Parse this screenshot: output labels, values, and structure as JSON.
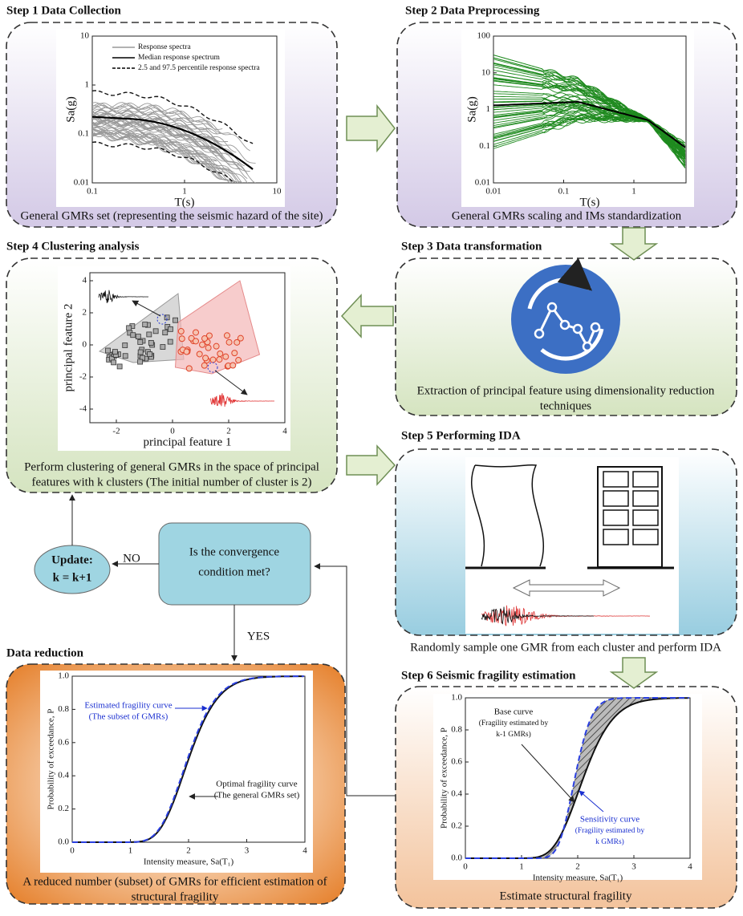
{
  "step1": {
    "title": "Step 1  Data Collection",
    "legend": [
      "Response spectra",
      "Median response spectrum",
      "2.5 and 97.5 percentile response spectra"
    ],
    "y_label": "Sa(g)",
    "x_label": "T(s)",
    "y_ticks": [
      "10",
      "1",
      "0.1",
      "0.01"
    ],
    "x_ticks": [
      "0.1",
      "1",
      "10"
    ],
    "caption": "General GMRs set (representing the seismic hazard of the site)"
  },
  "step2": {
    "title": "Step 2  Data Preprocessing",
    "y_label": "Sa(g)",
    "x_label": "T(s)",
    "y_ticks": [
      "100",
      "10",
      "1",
      "0.1",
      "0.01"
    ],
    "x_ticks": [
      "0.01",
      "0.1",
      "1"
    ],
    "caption": "General GMRs scaling and IMs standardization"
  },
  "step3": {
    "title": "Step 3  Data transformation",
    "caption": [
      "Extraction of principal feature  using dimensionality reduction",
      "techniques"
    ]
  },
  "step4": {
    "title": "Step 4  Clustering analysis",
    "y_label": "principal feature 2",
    "x_label": "principal feature 1",
    "y_ticks": [
      "4",
      "2",
      "0",
      "-2",
      "-4"
    ],
    "x_ticks": [
      "-2",
      "0",
      "2",
      "4"
    ],
    "caption": [
      "Perform clustering of general GMRs  in the space of principal",
      "features with k clusters (The initial number of cluster is 2)"
    ]
  },
  "step5": {
    "title": "Step 5  Performing IDA",
    "caption": "Randomly sample one GMR from each cluster and perform IDA"
  },
  "step6": {
    "title": "Step 6  Seismic fragility estimation",
    "y_label": "Probability of exceedance, P",
    "x_label": "Intensity measure, Sa(T₁)",
    "y_ticks": [
      "1.0",
      "0.8",
      "0.6",
      "0.4",
      "0.2",
      "0.0"
    ],
    "x_ticks": [
      "0",
      "1",
      "2",
      "3",
      "4"
    ],
    "base_curve": [
      "Base curve",
      "(Fragility estimated by",
      "k-1 GMRs)"
    ],
    "sensitivity_curve": [
      "Sensitivity curve",
      "(Fragility estimated by",
      "k GMRs)"
    ],
    "caption": "Estimate structural fragility"
  },
  "decision": {
    "question": [
      "Is the convergence",
      "condition met?"
    ],
    "no": "NO",
    "yes": "YES"
  },
  "update": {
    "title": "Update:",
    "formula": "k = k+1"
  },
  "data_reduction": {
    "title": "Data reduction",
    "y_label": "Probability of exceedance, P",
    "x_label": "Intensity measure, Sa(T₁)",
    "y_ticks": [
      "1.0",
      "0.8",
      "0.6",
      "0.4",
      "0.2",
      "0.0"
    ],
    "x_ticks": [
      "0",
      "1",
      "2",
      "3",
      "4"
    ],
    "estimated": [
      "Estimated fragility curve",
      "(The subset of GMRs)"
    ],
    "optimal": [
      "Optimal fragility curve",
      "(The general GMRs set)"
    ],
    "caption": [
      "A reduced number (subset) of GMRs for efficient estimation of",
      "structural fragility"
    ]
  }
}
